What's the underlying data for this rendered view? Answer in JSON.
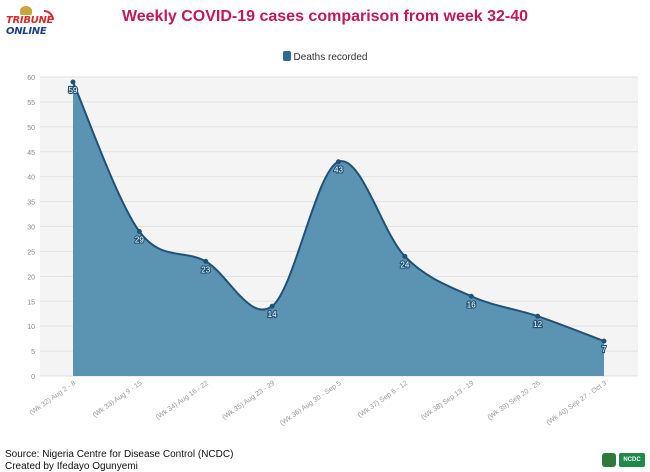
{
  "branding": {
    "logo_top": "TRIBUNE",
    "logo_bottom": "ONLINE"
  },
  "chart_data": {
    "type": "area",
    "title": "Weekly COVID-19 cases comparison from week 32-40",
    "categories": [
      "(Wk 32) Aug 2 - 8",
      "(Wk 33) Aug 9 - 15",
      "(Wk 34) Aug 16 - 22",
      "(Wk 35) Aug 23 - 29",
      "(Wk 36) Aug 30 - Sep 5",
      "(Wk 37) Sep 6 - 12",
      "(Wk 38) Sep 13 - 19",
      "(Wk 39) Sep 20 - 26",
      "(Wk 40) Sep 27 - Oct 3"
    ],
    "series": [
      {
        "name": "Deaths recorded",
        "values": [
          59,
          29,
          23,
          14,
          43,
          24,
          16,
          12,
          7
        ]
      }
    ],
    "ylim": [
      0,
      60
    ],
    "yticks": [
      0,
      5,
      10,
      15,
      20,
      25,
      30,
      35,
      40,
      45,
      50,
      55,
      60
    ],
    "grid": true,
    "legend": "top-center",
    "colors": {
      "fill": "#5b93b2",
      "line": "#1f5275",
      "point": "#1f5275",
      "title": "#c2185b"
    }
  },
  "footer": {
    "source": "Source: Nigeria Centre for Disease Control (NCDC)",
    "credit": "Created by Ifedayo Ogunyemi",
    "logo_label": "NCDC"
  }
}
